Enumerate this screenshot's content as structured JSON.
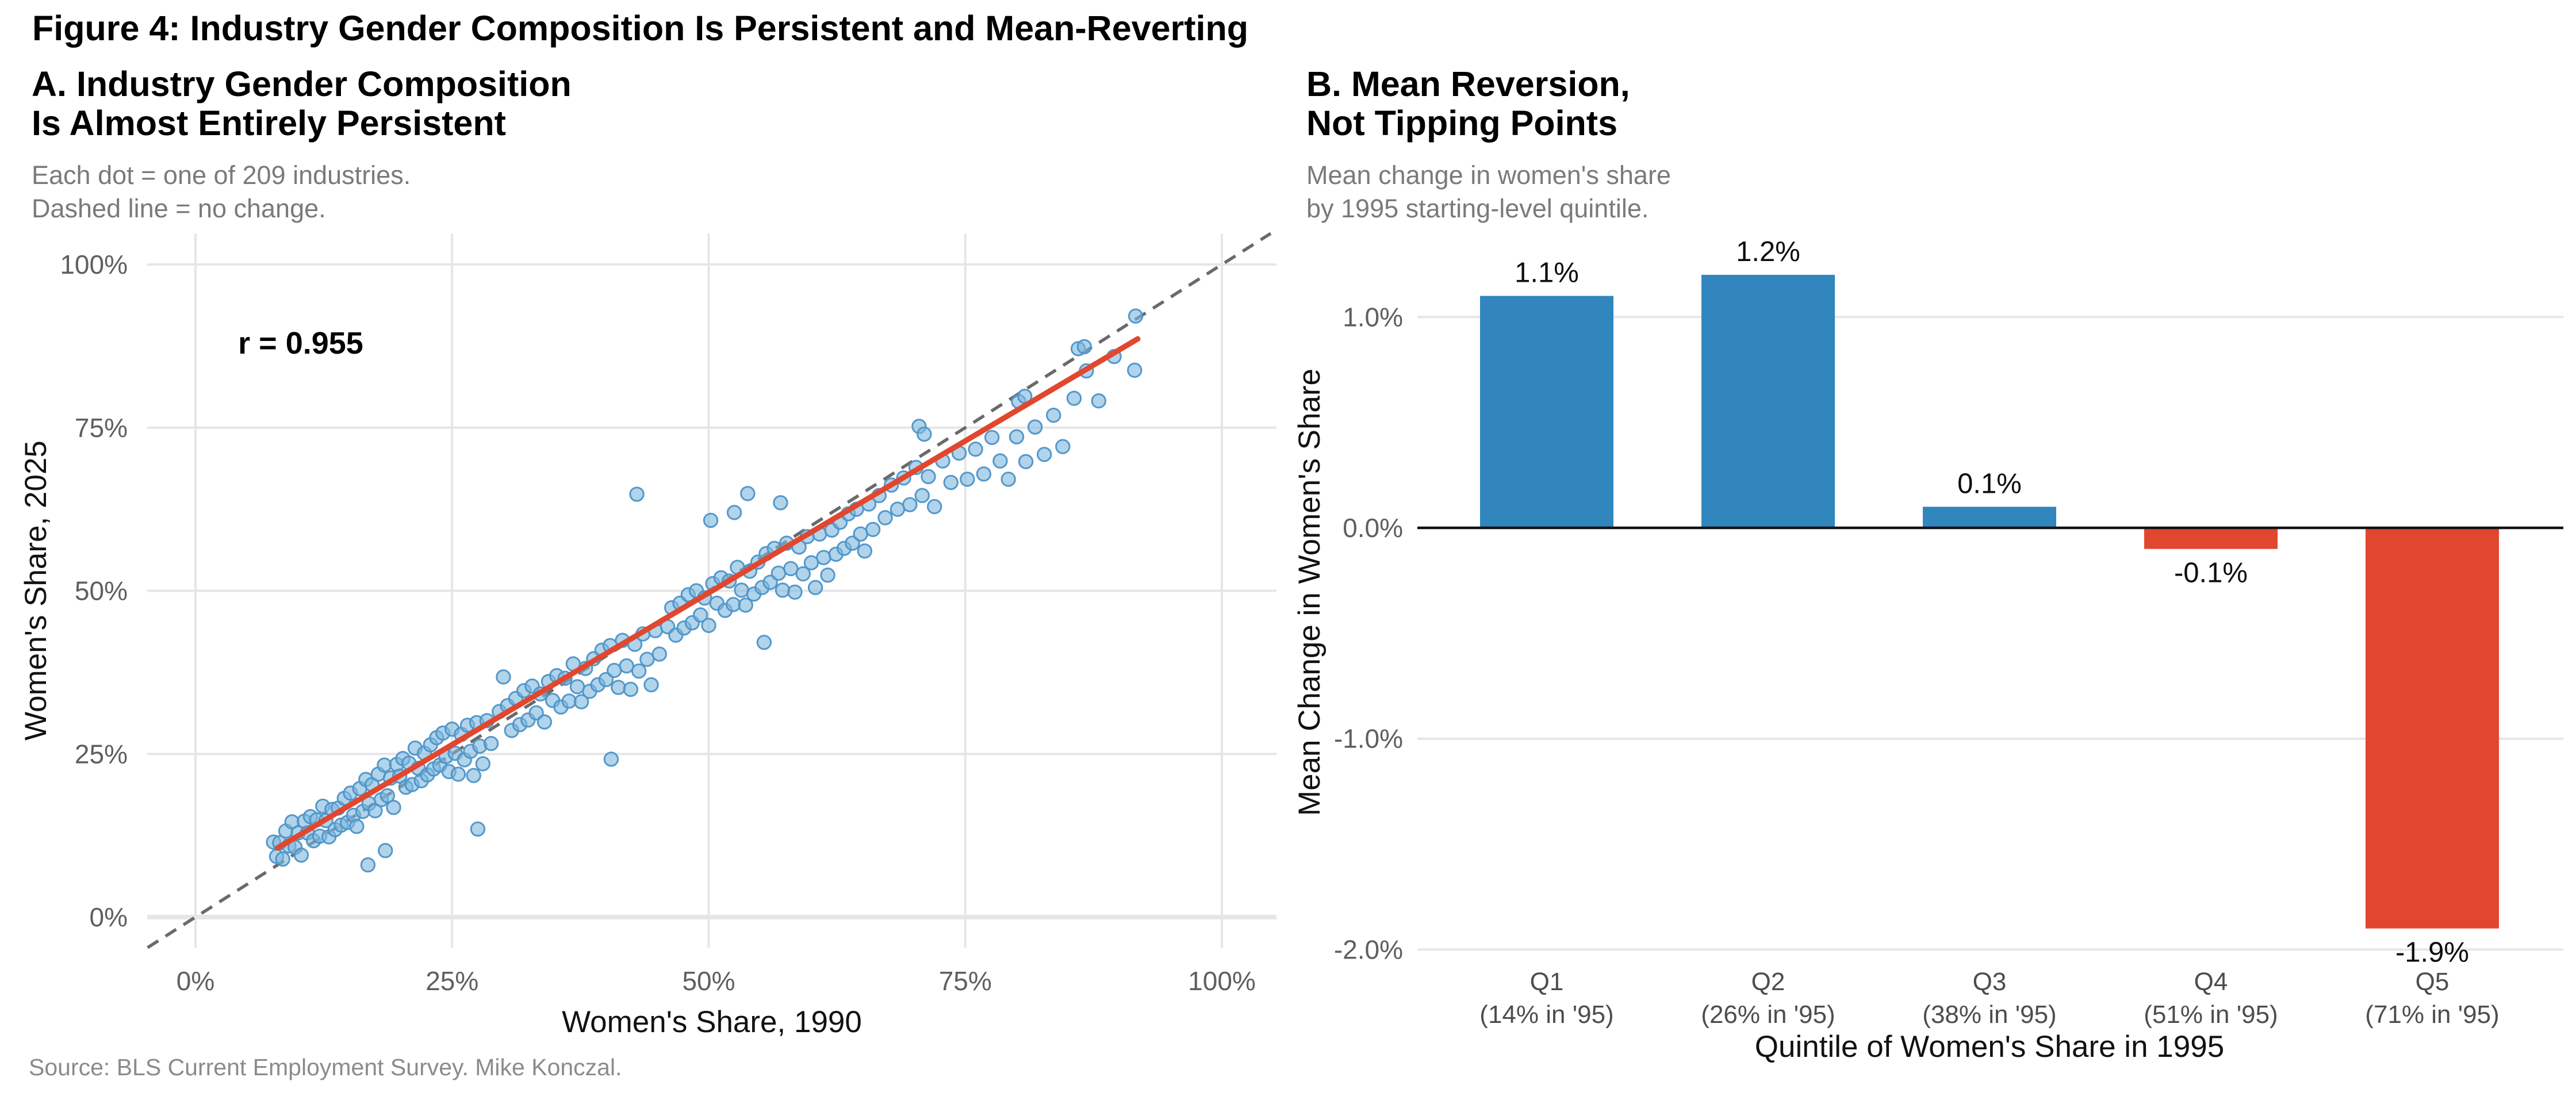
{
  "figure": {
    "title": "Figure 4: Industry Gender Composition Is Persistent and Mean-Reverting"
  },
  "panel_a": {
    "title1": "A. Industry Gender Composition",
    "title2": "Is Almost Entirely Persistent",
    "subtitle1": "Each dot = one of 209 industries.",
    "subtitle2": "Dashed line = no change."
  },
  "panel_b": {
    "title1": "B. Mean Reversion,",
    "title2": "Not Tipping Points",
    "subtitle1": "Mean change in women's share",
    "subtitle2": "by 1995 starting-level quintile."
  },
  "source": "Source: BLS Current Employment Survey. Mike Konczal.",
  "colors": {
    "dot_fill": "#7db8dd",
    "dot_stroke": "#4d94c8",
    "trend_red": "#e1472f",
    "identity_gray": "#6a6a6a",
    "grid": "#e6e6e6",
    "tick_text": "#5f5f5f",
    "cat_text": "#4d4d4d",
    "axis_title_text": "#111111",
    "bar_blue": "#3186bd",
    "bar_red": "#e1472f",
    "zero_line": "#111111",
    "value_label_text": "#0d0d0d"
  },
  "chart_data": [
    {
      "type": "scatter",
      "title": "A. Industry Gender Composition Is Almost Entirely Persistent",
      "xlabel": "Women's Share, 1990",
      "ylabel": "Women's Share, 2025",
      "x_tick_labels": [
        "0%",
        "25%",
        "50%",
        "75%",
        "100%"
      ],
      "x_tick_values": [
        0,
        25,
        50,
        75,
        100
      ],
      "y_tick_labels": [
        "0%",
        "25%",
        "50%",
        "75%",
        "100%"
      ],
      "y_tick_values": [
        0,
        25,
        50,
        75,
        100
      ],
      "xlim": [
        -5,
        105
      ],
      "ylim": [
        -5,
        105
      ],
      "grid": true,
      "n_points": 209,
      "annotation": {
        "text": "r = 0.955"
      },
      "identity_line": {
        "slope": 1,
        "intercept": 0,
        "style": "dashed"
      },
      "trend_line": {
        "x1": 8,
        "y1": 10.6,
        "x2": 91.8,
        "y2": 88.6
      },
      "points": [
        [
          7.6,
          11.5
        ],
        [
          7.9,
          9.3
        ],
        [
          8.2,
          11.4
        ],
        [
          8.5,
          8.9
        ],
        [
          8.8,
          13.2
        ],
        [
          9.1,
          10.9
        ],
        [
          9.4,
          14.6
        ],
        [
          9.7,
          10.7
        ],
        [
          10,
          12.9
        ],
        [
          10.3,
          9.5
        ],
        [
          10.6,
          14.7
        ],
        [
          10.9,
          12.9
        ],
        [
          11.2,
          15.4
        ],
        [
          11.5,
          11.7
        ],
        [
          11.8,
          14.9
        ],
        [
          12.1,
          12.4
        ],
        [
          12.4,
          17
        ],
        [
          12.7,
          14.8
        ],
        [
          13,
          12.3
        ],
        [
          13.3,
          16.5
        ],
        [
          13.6,
          13.4
        ],
        [
          13.9,
          16.7
        ],
        [
          14.2,
          14.1
        ],
        [
          14.5,
          18.2
        ],
        [
          14.8,
          14.5
        ],
        [
          15.1,
          19
        ],
        [
          15.4,
          15.6
        ],
        [
          15.7,
          13.9
        ],
        [
          16,
          19.7
        ],
        [
          16.3,
          16.2
        ],
        [
          16.8,
          8
        ],
        [
          18.5,
          10.2
        ],
        [
          16.6,
          21.1
        ],
        [
          16.9,
          17.4
        ],
        [
          17.2,
          20.3
        ],
        [
          17.5,
          16.3
        ],
        [
          17.8,
          21.9
        ],
        [
          18.1,
          18
        ],
        [
          18.4,
          23.3
        ],
        [
          18.7,
          18.6
        ],
        [
          19,
          21.3
        ],
        [
          19.3,
          16.8
        ],
        [
          19.6,
          23.4
        ],
        [
          19.9,
          21.6
        ],
        [
          20.2,
          24.3
        ],
        [
          20.5,
          19.9
        ],
        [
          20.8,
          23.6
        ],
        [
          21.1,
          20.3
        ],
        [
          21.4,
          25.9
        ],
        [
          21.7,
          22.8
        ],
        [
          22,
          20.9
        ],
        [
          22.3,
          25.1
        ],
        [
          22.6,
          21.8
        ],
        [
          22.9,
          26.4
        ],
        [
          23.2,
          22.7
        ],
        [
          23.5,
          27.5
        ],
        [
          23.8,
          23.3
        ],
        [
          24.1,
          28.2
        ],
        [
          24.4,
          24.6
        ],
        [
          24.7,
          22.3
        ],
        [
          25,
          28.8
        ],
        [
          25.3,
          25.1
        ],
        [
          25.6,
          21.9
        ],
        [
          25.9,
          28
        ],
        [
          26.2,
          24.1
        ],
        [
          26.5,
          29.4
        ],
        [
          26.8,
          25.4
        ],
        [
          27.1,
          21.7
        ],
        [
          27.4,
          29.8
        ],
        [
          27.7,
          26.2
        ],
        [
          28,
          23.5
        ],
        [
          28.4,
          30.1
        ],
        [
          28.8,
          26.6
        ],
        [
          27.5,
          13.5
        ],
        [
          29.6,
          31.5
        ],
        [
          30,
          36.8
        ],
        [
          30.4,
          32.4
        ],
        [
          30.8,
          28.6
        ],
        [
          31.2,
          33.5
        ],
        [
          31.6,
          29.5
        ],
        [
          32,
          34.7
        ],
        [
          32.4,
          30.2
        ],
        [
          32.8,
          35.4
        ],
        [
          33.2,
          31.3
        ],
        [
          33.6,
          34.2
        ],
        [
          34,
          29.9
        ],
        [
          34.4,
          36.1
        ],
        [
          34.8,
          33.2
        ],
        [
          35.2,
          37
        ],
        [
          35.6,
          32.2
        ],
        [
          36,
          36.6
        ],
        [
          36.4,
          33.1
        ],
        [
          36.8,
          38.8
        ],
        [
          37.2,
          35.3
        ],
        [
          37.6,
          33
        ],
        [
          38,
          38.1
        ],
        [
          38.4,
          34.6
        ],
        [
          38.8,
          39.6
        ],
        [
          39.2,
          35.6
        ],
        [
          39.6,
          40.9
        ],
        [
          40,
          36.4
        ],
        [
          40.4,
          41.6
        ],
        [
          40.8,
          37.8
        ],
        [
          41.2,
          35.2
        ],
        [
          41.6,
          42.4
        ],
        [
          42,
          38.5
        ],
        [
          42.4,
          34.9
        ],
        [
          42.8,
          41.8
        ],
        [
          43.2,
          37.7
        ],
        [
          43.6,
          43.4
        ],
        [
          44,
          39.5
        ],
        [
          44.4,
          35.6
        ],
        [
          44.8,
          43.9
        ],
        [
          45.2,
          40.3
        ],
        [
          46,
          44.5
        ],
        [
          43,
          64.8
        ],
        [
          40.5,
          24.2
        ],
        [
          46.4,
          47.4
        ],
        [
          46.8,
          43.2
        ],
        [
          47.2,
          48.1
        ],
        [
          47.6,
          44.3
        ],
        [
          48,
          49.4
        ],
        [
          48.4,
          45.1
        ],
        [
          48.8,
          50
        ],
        [
          49.2,
          46.3
        ],
        [
          49.6,
          48.9
        ],
        [
          50,
          44.7
        ],
        [
          50.4,
          51.1
        ],
        [
          50.8,
          48.1
        ],
        [
          51.2,
          52
        ],
        [
          51.6,
          47
        ],
        [
          52,
          51.5
        ],
        [
          52.4,
          47.9
        ],
        [
          52.8,
          53.6
        ],
        [
          53.2,
          50.1
        ],
        [
          53.6,
          47.8
        ],
        [
          54,
          53
        ],
        [
          54.4,
          49.5
        ],
        [
          54.8,
          54.4
        ],
        [
          55.2,
          50.5
        ],
        [
          55.6,
          55.7
        ],
        [
          56,
          51.3
        ],
        [
          56.4,
          56.5
        ],
        [
          56.8,
          52.7
        ],
        [
          57.2,
          50.1
        ],
        [
          57.6,
          57.3
        ],
        [
          58,
          53.4
        ],
        [
          58.4,
          49.8
        ],
        [
          58.8,
          56.7
        ],
        [
          59.2,
          52.6
        ],
        [
          59.6,
          58.3
        ],
        [
          60,
          54.3
        ],
        [
          60.4,
          50.5
        ],
        [
          60.8,
          58.7
        ],
        [
          61.2,
          55.1
        ],
        [
          61.6,
          52.4
        ],
        [
          62,
          59.3
        ],
        [
          62.4,
          55.6
        ],
        [
          62.8,
          60.5
        ],
        [
          63.2,
          56.5
        ],
        [
          63.6,
          61.8
        ],
        [
          64,
          57.3
        ],
        [
          64.4,
          62.5
        ],
        [
          64.8,
          58.7
        ],
        [
          65.2,
          56.1
        ],
        [
          65.6,
          63.3
        ],
        [
          66,
          59.4
        ],
        [
          57,
          63.5
        ],
        [
          52.5,
          62
        ],
        [
          53.8,
          64.9
        ],
        [
          50.2,
          60.8
        ],
        [
          55.4,
          42.1
        ],
        [
          66.6,
          64.6
        ],
        [
          67.2,
          61.2
        ],
        [
          67.8,
          66.2
        ],
        [
          68.4,
          62.5
        ],
        [
          69,
          67.3
        ],
        [
          69.6,
          63.2
        ],
        [
          70.2,
          68.9
        ],
        [
          70.8,
          64.6
        ],
        [
          71.4,
          67.5
        ],
        [
          72,
          62.9
        ],
        [
          72.8,
          69.9
        ],
        [
          73.6,
          66.6
        ],
        [
          74.4,
          71.1
        ],
        [
          75.2,
          67.1
        ],
        [
          76,
          71.7
        ],
        [
          76.8,
          67.9
        ],
        [
          77.6,
          73.5
        ],
        [
          78.4,
          69.9
        ],
        [
          79.2,
          67.1
        ],
        [
          80,
          73.6
        ],
        [
          80.9,
          69.8
        ],
        [
          81.8,
          75.1
        ],
        [
          82.7,
          70.9
        ],
        [
          83.6,
          76.9
        ],
        [
          84.5,
          72.1
        ],
        [
          85.6,
          79.5
        ],
        [
          86.8,
          83.7
        ],
        [
          88,
          79.1
        ],
        [
          89.5,
          85.9
        ],
        [
          91.5,
          83.8
        ],
        [
          91.6,
          92.1
        ],
        [
          80.2,
          79
        ],
        [
          80.8,
          79.8
        ],
        [
          86,
          87.1
        ],
        [
          86.6,
          87.4
        ],
        [
          70.5,
          75.2
        ],
        [
          71,
          74
        ]
      ]
    },
    {
      "type": "bar",
      "title": "B. Mean Reversion, Not Tipping Points",
      "xlabel": "Quintile of Women's Share in 1995",
      "ylabel": "Mean Change in Women's Share",
      "categories": [
        "Q1",
        "Q2",
        "Q3",
        "Q4",
        "Q5"
      ],
      "category_sublabels": [
        "(14% in '95)",
        "(26% in '95)",
        "(38% in '95)",
        "(51% in '95)",
        "(71% in '95)"
      ],
      "values": [
        1.1,
        1.2,
        0.1,
        -0.1,
        -1.9
      ],
      "value_labels": [
        "1.1%",
        "1.2%",
        "0.1%",
        "-0.1%",
        "-1.9%"
      ],
      "bar_colors": [
        "#3186bd",
        "#3186bd",
        "#3186bd",
        "#e1472f",
        "#e1472f"
      ],
      "y_tick_labels": [
        "1.0%",
        "0.0%",
        "-1.0%",
        "-2.0%"
      ],
      "y_tick_values": [
        1,
        0,
        -1,
        -2
      ],
      "ylim": [
        -2.1,
        1.45
      ],
      "grid": true
    }
  ]
}
